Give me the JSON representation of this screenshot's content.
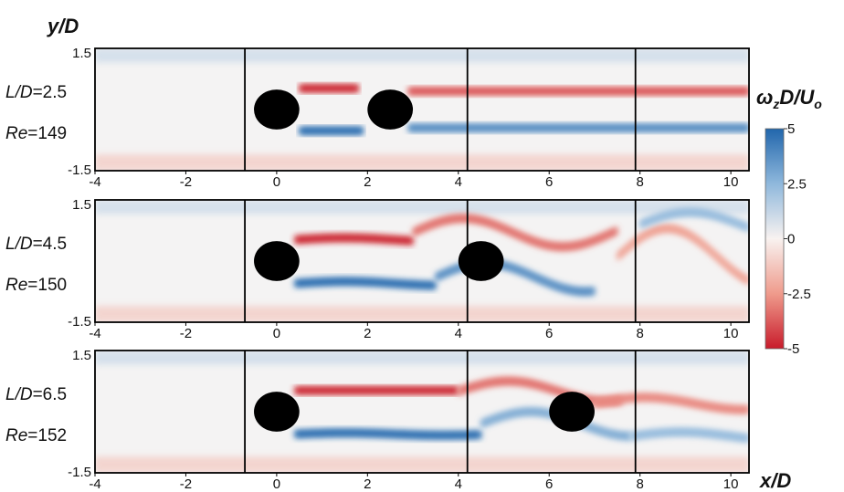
{
  "chart_data": {
    "type": "heatmap",
    "xlabel": "x/D",
    "ylabel": "y/D",
    "xlim": [
      -4,
      10.4
    ],
    "ylim": [
      -1.5,
      1.5
    ],
    "xticks": [
      "-4",
      "-2",
      "0",
      "2",
      "4",
      "6",
      "8",
      "10"
    ],
    "xtick_values": [
      -4,
      -2,
      0,
      2,
      4,
      6,
      8,
      10
    ],
    "yticks": [
      "1.5",
      "-1.5"
    ],
    "colorbar": {
      "label": "ωzD/Uo",
      "label_main": "ω",
      "label_sub1": "z",
      "label_mid": "D/U",
      "label_sub2": "o",
      "ticks": [
        "5",
        "2.5",
        "0",
        "-2.5",
        "-5"
      ],
      "tick_values": [
        5,
        2.5,
        0,
        -2.5,
        -5
      ],
      "range": [
        -5,
        5
      ],
      "colors": [
        "#c81b2b",
        "#ef9b8c",
        "#f8f2f0",
        "#8fb8dc",
        "#2166ac"
      ]
    },
    "window_boundaries_x": [
      -0.7,
      4.2,
      7.9
    ],
    "panels": [
      {
        "line1_name": "L/D",
        "line1_value": "=2.5",
        "line2_name": "Re",
        "line2_value": "=149",
        "cylinders_x": [
          0,
          2.5
        ],
        "shear_layers": [
          {
            "sign": "negative",
            "x_start": 0.5,
            "x_end": 1.8,
            "y": 0.52,
            "peak": -5,
            "amp": 0
          },
          {
            "sign": "positive",
            "x_start": 0.5,
            "x_end": 1.9,
            "y": -0.52,
            "peak": 5,
            "amp": 0
          },
          {
            "sign": "negative",
            "x_start": 2.9,
            "x_end": 10.4,
            "y": 0.45,
            "peak": -4,
            "amp": 0
          },
          {
            "sign": "positive",
            "x_start": 2.9,
            "x_end": 10.4,
            "y": -0.45,
            "peak": 4,
            "amp": 0
          }
        ]
      },
      {
        "line1_name": "L/D",
        "line1_value": "=4.5",
        "line2_name": "Re",
        "line2_value": "=150",
        "cylinders_x": [
          0,
          4.5
        ],
        "shear_layers": [
          {
            "sign": "negative",
            "x_start": 0.4,
            "x_end": 3.0,
            "y": 0.52,
            "peak": -5,
            "amp": 0.05
          },
          {
            "sign": "positive",
            "x_start": 0.4,
            "x_end": 3.5,
            "y": -0.55,
            "peak": 5,
            "amp": 0.05
          },
          {
            "sign": "negative",
            "x_start": 3.0,
            "x_end": 7.5,
            "y": 0.7,
            "peak": -3.5,
            "amp": 0.35
          },
          {
            "sign": "positive",
            "x_start": 3.5,
            "x_end": 7.0,
            "y": -0.4,
            "peak": 4,
            "amp": 0.35
          },
          {
            "sign": "negative",
            "x_start": 7.5,
            "x_end": 10.4,
            "y": 0.1,
            "peak": -2.5,
            "amp": 0.7
          },
          {
            "sign": "positive",
            "x_start": 8.0,
            "x_end": 10.4,
            "y": 0.9,
            "peak": 2.5,
            "amp": 0.3
          }
        ]
      },
      {
        "line1_name": "L/D",
        "line1_value": "=6.5",
        "line2_name": "Re",
        "line2_value": "=152",
        "cylinders_x": [
          0,
          6.5
        ],
        "shear_layers": [
          {
            "sign": "negative",
            "x_start": 0.4,
            "x_end": 4.0,
            "y": 0.52,
            "peak": -5,
            "amp": 0
          },
          {
            "sign": "positive",
            "x_start": 0.4,
            "x_end": 4.5,
            "y": -0.55,
            "peak": 5,
            "amp": 0.03
          },
          {
            "sign": "negative",
            "x_start": 4.0,
            "x_end": 7.6,
            "y": 0.5,
            "peak": -3.5,
            "amp": 0.25
          },
          {
            "sign": "positive",
            "x_start": 4.5,
            "x_end": 7.8,
            "y": -0.3,
            "peak": 3,
            "amp": 0.3
          },
          {
            "sign": "negative",
            "x_start": 7.0,
            "x_end": 10.4,
            "y": 0.2,
            "peak": -3,
            "amp": 0.15
          },
          {
            "sign": "positive",
            "x_start": 7.8,
            "x_end": 10.4,
            "y": -0.6,
            "peak": 2.5,
            "amp": 0.1
          }
        ]
      }
    ]
  }
}
